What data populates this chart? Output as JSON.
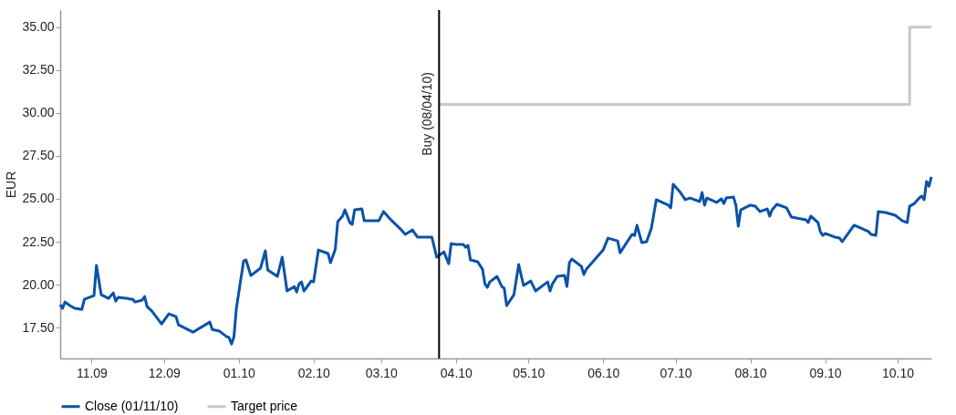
{
  "chart_data": {
    "type": "line",
    "ylabel": "EUR",
    "xlim": [
      "2009-11-02",
      "2010-10-29"
    ],
    "ylim": [
      15.7,
      36
    ],
    "xticks": [
      {
        "value": "2009-11-15",
        "label": "11.09"
      },
      {
        "value": "2009-12-15",
        "label": "12.09"
      },
      {
        "value": "2010-01-15",
        "label": "01.10"
      },
      {
        "value": "2010-02-15",
        "label": "02.10"
      },
      {
        "value": "2010-03-15",
        "label": "03.10"
      },
      {
        "value": "2010-04-15",
        "label": "04.10"
      },
      {
        "value": "2010-05-15",
        "label": "05.10"
      },
      {
        "value": "2010-06-15",
        "label": "06.10"
      },
      {
        "value": "2010-07-15",
        "label": "07.10"
      },
      {
        "value": "2010-08-15",
        "label": "08.10"
      },
      {
        "value": "2010-09-15",
        "label": "09.10"
      },
      {
        "value": "2010-10-15",
        "label": "10.10"
      }
    ],
    "yticks": [
      {
        "value": 17.5,
        "label": "17.50"
      },
      {
        "value": 20,
        "label": "20.00"
      },
      {
        "value": 22.5,
        "label": "22.50"
      },
      {
        "value": 25,
        "label": "25.00"
      },
      {
        "value": 27.5,
        "label": "27.50"
      },
      {
        "value": 30,
        "label": "30.00"
      },
      {
        "value": 32.5,
        "label": "32.50"
      },
      {
        "value": 35,
        "label": "35.00"
      }
    ],
    "grid": false,
    "legend": "bottom",
    "marker": "none",
    "line_style": "solid",
    "ref_lines": [
      {
        "axis": "x",
        "value": "2010-04-08",
        "label": "Buy (08/04/10)",
        "color": "#000000"
      }
    ],
    "series": [
      {
        "name": "Close (01/11/10)",
        "color": "#0a52a8",
        "type": "line",
        "x": [
          "2009-11-02",
          "2009-11-03",
          "2009-11-04",
          "2009-11-06",
          "2009-11-08",
          "2009-11-11",
          "2009-11-12",
          "2009-11-16",
          "2009-11-17",
          "2009-11-19",
          "2009-11-22",
          "2009-11-24",
          "2009-11-25",
          "2009-11-26",
          "2009-11-30",
          "2009-12-01",
          "2009-12-02",
          "2009-12-03",
          "2009-12-06",
          "2009-12-07",
          "2009-12-08",
          "2009-12-10",
          "2009-12-14",
          "2009-12-17",
          "2009-12-20",
          "2009-12-21",
          "2009-12-27",
          "2010-01-03",
          "2010-01-04",
          "2010-01-07",
          "2010-01-10",
          "2010-01-11",
          "2010-01-12",
          "2010-01-13",
          "2010-01-14",
          "2010-01-17",
          "2010-01-18",
          "2010-01-20",
          "2010-01-24",
          "2010-01-26",
          "2010-01-27",
          "2010-01-31",
          "2010-02-02",
          "2010-02-04",
          "2010-02-07",
          "2010-02-08",
          "2010-02-09",
          "2010-02-10",
          "2010-02-11",
          "2010-02-14",
          "2010-02-15",
          "2010-02-17",
          "2010-02-21",
          "2010-02-22",
          "2010-02-24",
          "2010-02-25",
          "2010-02-27",
          "2010-02-28",
          "2010-03-02",
          "2010-03-03",
          "2010-03-04",
          "2010-03-07",
          "2010-03-08",
          "2010-03-14",
          "2010-03-16",
          "2010-03-19",
          "2010-03-23",
          "2010-03-25",
          "2010-03-28",
          "2010-03-30",
          "2010-04-05",
          "2010-04-07",
          "2010-04-10",
          "2010-04-12",
          "2010-04-13",
          "2010-04-15",
          "2010-04-18",
          "2010-04-19",
          "2010-04-20",
          "2010-04-21",
          "2010-04-24",
          "2010-04-26",
          "2010-04-27",
          "2010-04-28",
          "2010-04-29",
          "2010-05-02",
          "2010-05-04",
          "2010-05-05",
          "2010-05-06",
          "2010-05-09",
          "2010-05-11",
          "2010-05-13",
          "2010-05-16",
          "2010-05-18",
          "2010-05-23",
          "2010-05-24",
          "2010-05-25",
          "2010-05-27",
          "2010-05-30",
          "2010-05-31",
          "2010-06-01",
          "2010-06-02",
          "2010-06-06",
          "2010-06-07",
          "2010-06-08",
          "2010-06-15",
          "2010-06-17",
          "2010-06-21",
          "2010-06-22",
          "2010-06-27",
          "2010-06-28",
          "2010-06-29",
          "2010-07-01",
          "2010-07-03",
          "2010-07-05",
          "2010-07-07",
          "2010-07-12",
          "2010-07-13",
          "2010-07-14",
          "2010-07-17",
          "2010-07-19",
          "2010-07-21",
          "2010-07-25",
          "2010-07-26",
          "2010-07-27",
          "2010-07-28",
          "2010-08-01",
          "2010-08-03",
          "2010-08-04",
          "2010-08-05",
          "2010-08-08",
          "2010-08-09",
          "2010-08-10",
          "2010-08-11",
          "2010-08-15",
          "2010-08-17",
          "2010-08-19",
          "2010-08-22",
          "2010-08-23",
          "2010-08-24",
          "2010-08-26",
          "2010-08-30",
          "2010-09-01",
          "2010-09-05",
          "2010-09-07",
          "2010-09-08",
          "2010-09-09",
          "2010-09-12",
          "2010-09-13",
          "2010-09-14",
          "2010-09-15",
          "2010-09-19",
          "2010-09-21",
          "2010-09-22",
          "2010-09-27",
          "2010-10-03",
          "2010-10-04",
          "2010-10-06",
          "2010-10-07",
          "2010-10-10",
          "2010-10-14",
          "2010-10-17",
          "2010-10-19",
          "2010-10-20",
          "2010-10-22",
          "2010-10-24",
          "2010-10-25",
          "2010-10-26",
          "2010-10-27",
          "2010-10-28",
          "2010-10-29"
        ],
        "values": [
          18.83,
          18.62,
          18.99,
          18.78,
          18.62,
          18.56,
          19.15,
          19.36,
          21.12,
          19.41,
          19.2,
          19.52,
          19.04,
          19.26,
          19.2,
          19.15,
          19.15,
          18.99,
          19.1,
          19.31,
          18.72,
          18.46,
          17.71,
          18.3,
          18.14,
          17.66,
          17.23,
          17.82,
          17.39,
          17.29,
          16.97,
          16.91,
          16.54,
          16.97,
          18.62,
          21.38,
          21.44,
          20.53,
          20.96,
          21.97,
          20.85,
          20.48,
          21.6,
          19.63,
          19.89,
          19.57,
          20.05,
          20.16,
          19.63,
          20.21,
          20.16,
          22.02,
          21.81,
          21.28,
          22.07,
          23.67,
          23.99,
          24.36,
          23.62,
          23.51,
          24.36,
          24.41,
          23.72,
          23.72,
          24.26,
          23.78,
          23.24,
          22.93,
          23.19,
          22.77,
          22.77,
          21.6,
          21.91,
          21.22,
          22.39,
          22.34,
          22.34,
          22.18,
          22.29,
          21.44,
          21.33,
          20.9,
          20.05,
          19.84,
          20.16,
          20.48,
          19.89,
          19.79,
          18.78,
          19.41,
          21.17,
          19.95,
          20.21,
          19.63,
          20.16,
          19.63,
          20.05,
          20.48,
          20.53,
          19.89,
          21.28,
          21.49,
          21.06,
          20.59,
          20.9,
          22.02,
          22.71,
          22.55,
          21.86,
          22.93,
          22.87,
          23.46,
          22.45,
          22.5,
          23.3,
          24.95,
          24.63,
          24.47,
          25.85,
          25.37,
          24.95,
          25.05,
          24.84,
          25.37,
          24.63,
          25.05,
          24.79,
          25.0,
          24.73,
          25.05,
          25.11,
          24.63,
          23.4,
          24.36,
          24.63,
          24.57,
          24.26,
          24.41,
          23.99,
          24.36,
          24.68,
          24.47,
          23.94,
          23.83,
          23.78,
          23.62,
          23.99,
          23.62,
          23.09,
          22.87,
          22.98,
          22.77,
          22.71,
          22.5,
          23.46,
          23.09,
          22.93,
          22.87,
          24.26,
          24.2,
          24.04,
          23.72,
          23.62,
          24.57,
          24.73,
          25.05,
          25.16,
          24.95,
          26.01,
          25.74,
          26.28
        ]
      },
      {
        "name": "Target price",
        "color": "#c8c8c8",
        "type": "step",
        "x": [
          "2010-04-08",
          "2010-10-20",
          "2010-10-29"
        ],
        "values": [
          30.5,
          35,
          35
        ]
      }
    ]
  }
}
